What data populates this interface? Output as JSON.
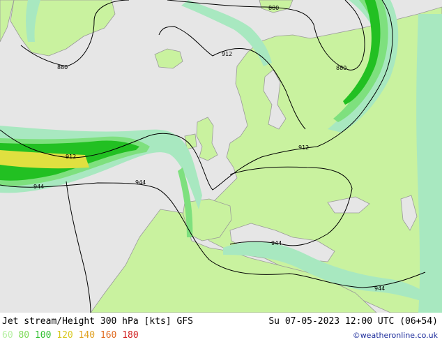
{
  "title": "Jet stream/Height 300 hPa [kts] GFS",
  "datetime": "Su 07-05-2023 12:00 UTC (06+54)",
  "credit": "©weatheronline.co.uk",
  "legend": [
    {
      "label": "60",
      "color": "#b4f0a0"
    },
    {
      "label": "80",
      "color": "#7ed957"
    },
    {
      "label": "100",
      "color": "#2fbf2f"
    },
    {
      "label": "120",
      "color": "#d8c820"
    },
    {
      "label": "140",
      "color": "#e0a020"
    },
    {
      "label": "160",
      "color": "#e06a20"
    },
    {
      "label": "180",
      "color": "#d02020"
    }
  ],
  "contour_labels": [
    "880",
    "880",
    "880",
    "912",
    "912",
    "912",
    "944",
    "944",
    "944",
    "944"
  ],
  "colors": {
    "ocean": "#e6e6e6",
    "land": "#c9f29f",
    "coast": "#9a9a9a",
    "jet_60": "#a8e8c0",
    "jet_80": "#7ee07e",
    "jet_100": "#22c022",
    "jet_120": "#e0e040"
  }
}
